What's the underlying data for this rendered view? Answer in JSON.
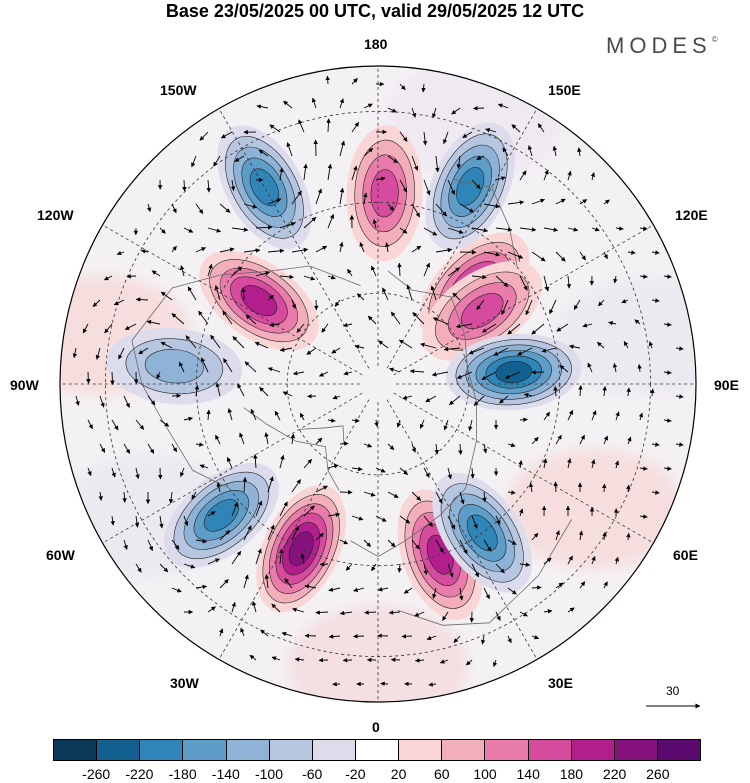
{
  "title": "Base 23/05/2025 00 UTC, valid 29/05/2025 12 UTC",
  "brand": "MODES",
  "brand_mark": "©",
  "longitude_labels": {
    "lon_180": "180",
    "lon_150w": "150W",
    "lon_150e": "150E",
    "lon_120w": "120W",
    "lon_120e": "120E",
    "lon_90w": "90W",
    "lon_90e": "90E",
    "lon_60w": "60W",
    "lon_60e": "60E",
    "lon_30w": "30W",
    "lon_30e": "30E",
    "lon_0": "0"
  },
  "wind_reference": {
    "value": "30"
  },
  "colorbar": {
    "ticks": [
      "-260",
      "-220",
      "-180",
      "-140",
      "-100",
      "-60",
      "-20",
      "20",
      "60",
      "100",
      "140",
      "180",
      "220",
      "260"
    ],
    "colors": [
      "#0b3a59",
      "#12608f",
      "#2f85b8",
      "#5d9dc8",
      "#8fb3d7",
      "#b6c5e0",
      "#dddcec",
      "#ffffff",
      "#f9d5d6",
      "#f2aeba",
      "#ea7cab",
      "#d64b9e",
      "#b21e8c",
      "#86127e",
      "#5a0a6e"
    ]
  },
  "anomalies": [
    {
      "sign": "positive",
      "level": 3,
      "lon": 178,
      "colat": 42
    },
    {
      "sign": "positive",
      "level": 4,
      "lon": 135,
      "colat": 30
    },
    {
      "sign": "positive",
      "level": 3,
      "lon": 125,
      "colat": 28
    },
    {
      "sign": "positive",
      "level": 4,
      "lon": -125,
      "colat": 32
    },
    {
      "sign": "positive",
      "level": 4,
      "lon": 20,
      "colat": 40
    },
    {
      "sign": "positive",
      "level": 5,
      "lon": -25,
      "colat": 40
    },
    {
      "sign": "negative",
      "level": 4,
      "lon": 155,
      "colat": 48
    },
    {
      "sign": "negative",
      "level": 4,
      "lon": -150,
      "colat": 50
    },
    {
      "sign": "negative",
      "level": 5,
      "lon": 95,
      "colat": 30
    },
    {
      "sign": "negative",
      "level": 4,
      "lon": 35,
      "colat": 40
    },
    {
      "sign": "negative",
      "level": 4,
      "lon": -50,
      "colat": 45
    },
    {
      "sign": "negative",
      "level": 2,
      "lon": -95,
      "colat": 45
    }
  ]
}
